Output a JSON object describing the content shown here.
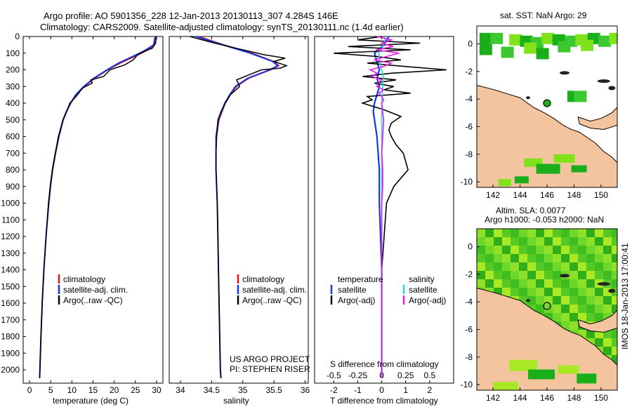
{
  "header": {
    "line1": "Argo profile: AO 5901356_228 12-Jan-2013 20130113_307 4.284S 146E",
    "line2": "Climatology: CARS2009. Satellite-adjusted climatology: synTS_20130111.nc (1.4d earlier)"
  },
  "depth_ticks": [
    0,
    100,
    200,
    300,
    400,
    500,
    600,
    700,
    800,
    900,
    1000,
    1100,
    1200,
    1300,
    1400,
    1500,
    1600,
    1700,
    1800,
    1900,
    2000
  ],
  "colors": {
    "clim": "#e8121b",
    "sat": "#1535e6",
    "argo": "#000000",
    "sat_s": "#20d8e0",
    "argo_s": "#e51ae5",
    "land": "#f3c49e",
    "sst_green": "#1aaf1a",
    "lime": "#7fe21a"
  },
  "chart_data": [
    {
      "type": "line",
      "name": "temperature",
      "xlabel": "temperature (deg C)",
      "xticks": [
        0,
        5,
        10,
        15,
        20,
        25,
        30
      ],
      "xlim": [
        -1.5,
        31.5
      ],
      "ylim": [
        0,
        2080
      ],
      "legend": [
        "climatology",
        "satellite-adj. clim.",
        "Argo(..raw -QC)"
      ],
      "series": [
        {
          "name": "climatology",
          "depth": [
            0,
            50,
            80,
            100,
            130,
            160,
            200,
            250,
            300,
            350,
            400,
            450,
            500,
            600,
            700,
            800,
            900,
            1000,
            1200,
            1400,
            1600,
            1800,
            2000,
            2050
          ],
          "values": [
            29.8,
            29.5,
            28,
            26.5,
            24,
            21.5,
            18.5,
            15.5,
            13,
            11,
            9.8,
            8.8,
            8.0,
            7.0,
            6.2,
            5.5,
            5.0,
            4.6,
            3.9,
            3.4,
            3.0,
            2.7,
            2.45,
            2.4
          ]
        },
        {
          "name": "satellite-adj. clim.",
          "depth": [
            0,
            50,
            80,
            100,
            130,
            160,
            200,
            250,
            300,
            350,
            400,
            450,
            500,
            600,
            700,
            800,
            900,
            1000,
            1200,
            1400,
            1600,
            1800,
            2000,
            2050
          ],
          "values": [
            29.7,
            29.3,
            27.5,
            26,
            23.5,
            21,
            18.3,
            15.2,
            12.8,
            10.9,
            9.7,
            8.7,
            7.9,
            6.9,
            6.1,
            5.4,
            4.9,
            4.5,
            3.9,
            3.4,
            3.0,
            2.7,
            2.45,
            2.4
          ]
        },
        {
          "name": "Argo(..raw -QC)",
          "depth": [
            0,
            40,
            70,
            90,
            110,
            140,
            170,
            200,
            240,
            260,
            280,
            310,
            360,
            400,
            450,
            500,
            600,
            700,
            800,
            900,
            1000,
            1200,
            1400,
            1600,
            1800,
            2000,
            2050
          ],
          "values": [
            29.9,
            29.8,
            29.0,
            27.0,
            25.5,
            24.5,
            22.5,
            19.0,
            17.5,
            14.5,
            14.8,
            12.5,
            11.0,
            9.5,
            8.8,
            7.9,
            6.8,
            6.1,
            5.4,
            4.9,
            4.5,
            3.9,
            3.4,
            3.0,
            2.7,
            2.45,
            2.4
          ]
        }
      ]
    },
    {
      "type": "line",
      "name": "salinity",
      "xlabel": "salinity",
      "xticks": [
        34,
        34.5,
        35,
        35.5,
        36
      ],
      "xlim": [
        33.82,
        36.05
      ],
      "ylim": [
        0,
        2080
      ],
      "legend": [
        "climatology",
        "satellite-adj. clim.",
        "Argo(..raw -QC)"
      ],
      "annotation": [
        "US ARGO PROJECT",
        "PI: STEPHEN RISER"
      ],
      "series": [
        {
          "name": "climatology",
          "depth": [
            0,
            50,
            100,
            150,
            175,
            200,
            250,
            300,
            350,
            400,
            500,
            600,
            700,
            800,
            900,
            1000,
            1200,
            1400,
            1600,
            1800,
            2000,
            2050
          ],
          "values": [
            34.3,
            34.7,
            35.15,
            35.5,
            35.58,
            35.45,
            35.1,
            34.9,
            34.8,
            34.72,
            34.62,
            34.58,
            34.57,
            34.57,
            34.58,
            34.59,
            34.6,
            34.61,
            34.62,
            34.63,
            34.64,
            34.65
          ]
        },
        {
          "name": "satellite-adj. clim.",
          "depth": [
            0,
            50,
            100,
            150,
            175,
            200,
            250,
            300,
            350,
            400,
            500,
            600,
            700,
            800,
            900,
            1000,
            1200,
            1400,
            1600,
            1800,
            2000,
            2050
          ],
          "values": [
            34.25,
            34.68,
            35.12,
            35.48,
            35.56,
            35.43,
            35.08,
            34.88,
            34.79,
            34.71,
            34.61,
            34.57,
            34.57,
            34.57,
            34.58,
            34.59,
            34.6,
            34.61,
            34.62,
            34.63,
            34.64,
            34.65
          ]
        },
        {
          "name": "Argo(..raw -QC)",
          "depth": [
            0,
            40,
            80,
            110,
            130,
            150,
            175,
            190,
            200,
            230,
            260,
            300,
            350,
            400,
            450,
            500,
            600,
            700,
            800,
            900,
            1000,
            1200,
            1400,
            1600,
            1800,
            2000,
            2050
          ],
          "values": [
            34.15,
            34.55,
            35.0,
            35.35,
            35.68,
            35.5,
            35.7,
            35.6,
            35.3,
            35.1,
            34.9,
            34.95,
            34.8,
            34.72,
            34.65,
            34.6,
            34.58,
            34.57,
            34.57,
            34.58,
            34.59,
            34.6,
            34.61,
            34.62,
            34.63,
            34.64,
            34.65
          ]
        }
      ]
    },
    {
      "type": "line",
      "name": "difference",
      "xlabel": "T difference from climatology",
      "xlabel_top": "S difference from climatology",
      "xticks": [
        -2,
        -1,
        0,
        1,
        2
      ],
      "xticks_s": [
        "-0.5",
        "-0.25",
        "0",
        "0.25",
        "0.5"
      ],
      "xlim": [
        -2.8,
        3.0
      ],
      "ylim": [
        0,
        2080
      ],
      "legend_t": [
        "temperature",
        "satellite",
        "Argo(-adj)"
      ],
      "legend_s": [
        "salinity",
        "satellite",
        "Argo(-adj)"
      ],
      "series": [
        {
          "name": "T satellite",
          "depth": [
            0,
            50,
            100,
            150,
            200,
            250,
            300,
            350,
            400,
            450,
            500,
            600,
            700,
            800,
            1000,
            1200,
            1400,
            1600,
            1800,
            2000,
            2050
          ],
          "values": [
            0.3,
            0.1,
            -0.3,
            -0.2,
            -0.1,
            -0.2,
            -0.1,
            -0.2,
            -0.3,
            -0.35,
            -0.3,
            -0.2,
            -0.15,
            -0.1,
            -0.1,
            -0.05,
            0,
            0,
            0,
            0,
            0
          ]
        },
        {
          "name": "T Argo(-adj)",
          "depth": [
            0,
            20,
            40,
            60,
            80,
            100,
            120,
            140,
            160,
            180,
            200,
            220,
            240,
            260,
            280,
            300,
            320,
            340,
            360,
            380,
            400,
            440,
            480,
            520,
            560,
            600,
            650,
            700,
            750,
            800,
            900,
            1000,
            1200,
            1400,
            1600,
            1800,
            2000,
            2050
          ],
          "values": [
            0,
            -1.0,
            1.6,
            -1.4,
            1.2,
            -2.0,
            -0.2,
            0.8,
            -0.6,
            1.0,
            2.7,
            0.4,
            -0.8,
            0.6,
            -0.3,
            0.5,
            0.1,
            1.2,
            -0.6,
            -0.4,
            -0.8,
            0.1,
            0.8,
            0.4,
            0.3,
            0.4,
            0.6,
            0.9,
            1.0,
            1.1,
            0.5,
            0.2,
            0.1,
            0,
            0,
            0,
            0,
            0
          ]
        },
        {
          "name": "S satellite",
          "depth": [
            0,
            50,
            100,
            150,
            200,
            250,
            300,
            400,
            500,
            600,
            800,
            1000,
            1200,
            1400,
            1600,
            1800,
            2000,
            2050
          ],
          "values": [
            0.04,
            0.02,
            -0.03,
            -0.02,
            0.0,
            0.02,
            0.01,
            0.0,
            0.0,
            0.0,
            0.0,
            0.0,
            0.0,
            0.0,
            0.0,
            0.0,
            0.0,
            0.0
          ]
        },
        {
          "name": "S Argo(-adj)",
          "depth": [
            0,
            20,
            40,
            60,
            80,
            100,
            120,
            140,
            160,
            180,
            200,
            220,
            240,
            260,
            280,
            300,
            320,
            340,
            360,
            380,
            400,
            450,
            500,
            600,
            700,
            800,
            900,
            1000,
            1200,
            1400,
            1600,
            1800,
            2000,
            2050
          ],
          "values": [
            -0.05,
            0.1,
            0.0,
            0.12,
            -0.06,
            0.18,
            0.05,
            -0.08,
            0.1,
            0.02,
            -0.12,
            -0.05,
            -0.1,
            0.0,
            -0.04,
            -0.05,
            0.02,
            -0.03,
            0.0,
            0.02,
            0.0,
            0.01,
            0.02,
            0.01,
            0.0,
            0.01,
            0.01,
            0.0,
            0.0,
            0.0,
            0.0,
            0.0,
            0.0,
            0.0
          ]
        }
      ]
    },
    {
      "type": "heatmap",
      "name": "sst_map",
      "title": "sat. SST: NaN Argo: 29",
      "xticks": [
        142,
        144,
        146,
        148,
        150
      ],
      "yticks": [
        0,
        -2,
        -4,
        -6,
        -8,
        -10
      ],
      "xlim": [
        140.8,
        151.2
      ],
      "ylim": [
        -10.4,
        1.3
      ],
      "argo_position": [
        146.0,
        -4.3
      ]
    },
    {
      "type": "heatmap",
      "name": "sla_map",
      "title1": "Altim. SLA: 0.0077",
      "title2": "Argo h1000: -0.053 h2000: NaN",
      "xticks": [
        142,
        144,
        146,
        148,
        150
      ],
      "yticks": [
        0,
        -2,
        -4,
        -6,
        -8,
        -10
      ],
      "xlim": [
        140.8,
        151.2
      ],
      "ylim": [
        -10.4,
        1.3
      ],
      "argo_position": [
        146.0,
        -4.3
      ]
    }
  ],
  "footer_stamp": "IMOS 18-Jan-2013 17:00:41"
}
